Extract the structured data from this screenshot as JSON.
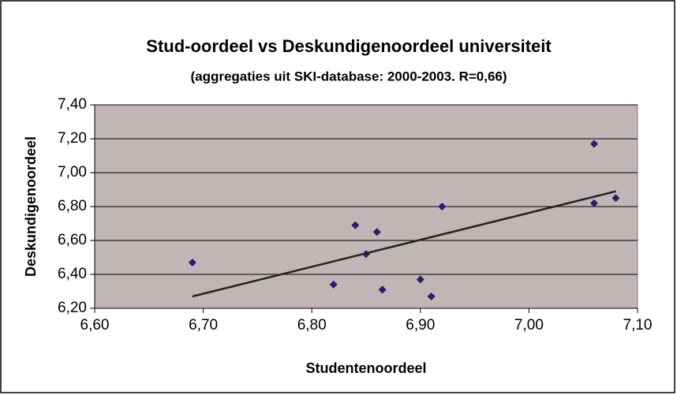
{
  "chart_data": {
    "type": "scatter",
    "title": "Stud-oordeel vs Deskundigenoordeel universiteit",
    "subtitle": "(aggregaties uit SKI-database: 2000-2003. R=0,66)",
    "x_label": "Studentenoordeel",
    "y_label": "Deskundigenoordeel",
    "series": [
      {
        "color": "#20206e",
        "x": [
          6.69,
          6.82,
          6.84,
          6.85,
          6.86,
          6.865,
          6.9,
          6.91,
          6.92,
          7.06,
          7.06,
          7.08
        ],
        "values": [
          6.47,
          6.34,
          6.69,
          6.52,
          6.65,
          6.31,
          6.37,
          6.27,
          6.8,
          6.82,
          7.17,
          6.85
        ]
      }
    ],
    "trendline": {
      "color": "#222222",
      "x": [
        6.69,
        7.08
      ],
      "values": [
        6.27,
        6.89
      ]
    },
    "xlim": [
      6.6,
      7.1
    ],
    "xticks": [
      {
        "value": 6.6,
        "label": "6,60"
      },
      {
        "value": 6.7,
        "label": "6,70"
      },
      {
        "value": 6.8,
        "label": "6,80"
      },
      {
        "value": 6.9,
        "label": "6,90"
      },
      {
        "value": 7.0,
        "label": "7,00"
      },
      {
        "value": 7.1,
        "label": "7,10"
      }
    ],
    "ylim": [
      6.2,
      7.4
    ],
    "yticks": [
      {
        "value": 6.2,
        "label": "6,20"
      },
      {
        "value": 6.4,
        "label": "6,40"
      },
      {
        "value": 6.6,
        "label": "6,60"
      },
      {
        "value": 6.8,
        "label": "6,80"
      },
      {
        "value": 7.0,
        "label": "7,00"
      },
      {
        "value": 7.2,
        "label": "7,20"
      },
      {
        "value": 7.4,
        "label": "7,40"
      }
    ],
    "grid": true,
    "plot_background": "#c0b6b6"
  }
}
